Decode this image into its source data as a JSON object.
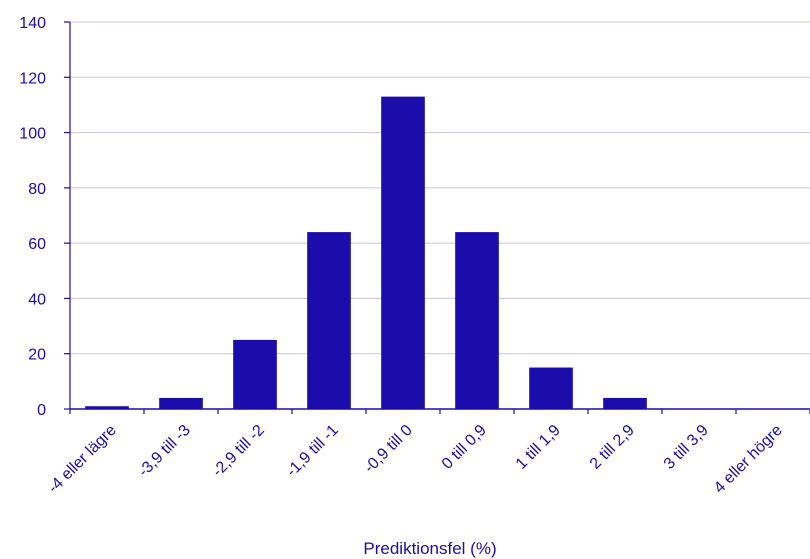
{
  "chart_data": {
    "type": "bar",
    "categories": [
      "-4 eller lägre",
      "-3,9 till -3",
      "-2,9 till -2",
      "-1,9 till -1",
      "-0,9 till 0",
      "0 till 0,9",
      "1 till 1,9",
      "2 till 2,9",
      "3 till 3,9",
      "4 eller högre"
    ],
    "values": [
      1,
      4,
      25,
      64,
      113,
      64,
      15,
      4,
      0,
      0
    ],
    "xlabel": "Prediktionsfel (%)",
    "ylabel": "",
    "ylim": [
      0,
      140
    ],
    "yticks": [
      "0",
      "20",
      "40",
      "60",
      "80",
      "100",
      "120",
      "140"
    ],
    "grid": "horizontal",
    "colors": {
      "bar": "#1a0dab",
      "text": "#1a0dab",
      "grid": "#c7c7e8",
      "axis": "#1a0dab"
    }
  }
}
